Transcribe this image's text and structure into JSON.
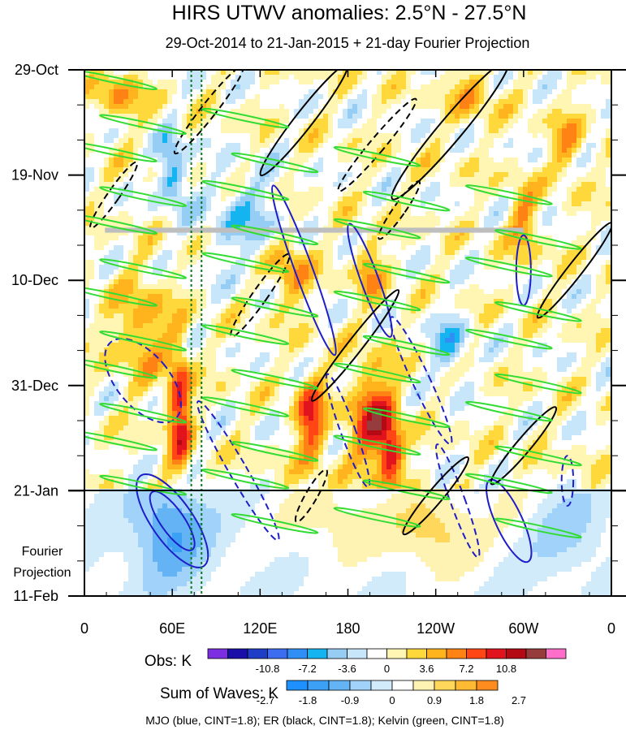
{
  "chart_data": {
    "type": "heatmap",
    "title": "HIRS UTWV anomalies: 2.5°N - 27.5°N",
    "subtitle": "29-Oct-2014 to 21-Jan-2015 + 21-day Fourier Projection",
    "x_axis": {
      "tick_labels": [
        "0",
        "60E",
        "120E",
        "180",
        "120W",
        "60W",
        "0"
      ],
      "range_deg": [
        0,
        360
      ]
    },
    "y_axis": {
      "tick_labels": [
        "29-Oct",
        "19-Nov",
        "10-Dec",
        "31-Dec",
        "21-Jan",
        "11-Feb"
      ],
      "range_days": [
        0,
        105
      ],
      "direction": "time increases downward"
    },
    "projection_label": [
      "Fourier",
      "Projection"
    ],
    "observation_end_label": "21-Jan",
    "obs_colorbar": {
      "label": "Obs: K",
      "tick_labels": [
        "-10.8",
        "-7.2",
        "-3.6",
        "0",
        "3.6",
        "7.2",
        "10.8"
      ],
      "colors": [
        "#7b2fe0",
        "#1a0fa8",
        "#1e3ec8",
        "#3c6cf0",
        "#2f8ff5",
        "#14b4f0",
        "#96cdf5",
        "#c8e6fa",
        "#ffffff",
        "#fff6b4",
        "#ffd83c",
        "#ffb41e",
        "#ff8214",
        "#ff4614",
        "#e1141e",
        "#b40a14",
        "#963c3c",
        "#ff6ec8"
      ]
    },
    "waves_colorbar": {
      "label": "Sum of Waves: K",
      "tick_labels": [
        "-2.7",
        "-1.8",
        "-0.9",
        "0",
        "0.9",
        "1.8",
        "2.7"
      ],
      "colors": [
        "#1e90ff",
        "#3ca0f5",
        "#64b4f5",
        "#a0d2fa",
        "#d2ebfa",
        "#ffffff",
        "#fff3b4",
        "#ffd75a",
        "#ffb932",
        "#ff8c1e"
      ]
    },
    "legend_note": "MJO (blue, CINT=1.8); ER (black, CINT=1.8); Kelvin (green, CINT=1.8)",
    "series": [
      {
        "name": "MJO",
        "color": "#1e1ec8"
      },
      {
        "name": "ER",
        "color": "#000000"
      },
      {
        "name": "Kelvin",
        "color": "#32dc32"
      }
    ],
    "missing_data_band": {
      "day_start": 31.5,
      "day_end": 32.5,
      "color": "#bebebe"
    },
    "reference_meridians_deg": [
      73,
      80
    ],
    "grid": false
  }
}
